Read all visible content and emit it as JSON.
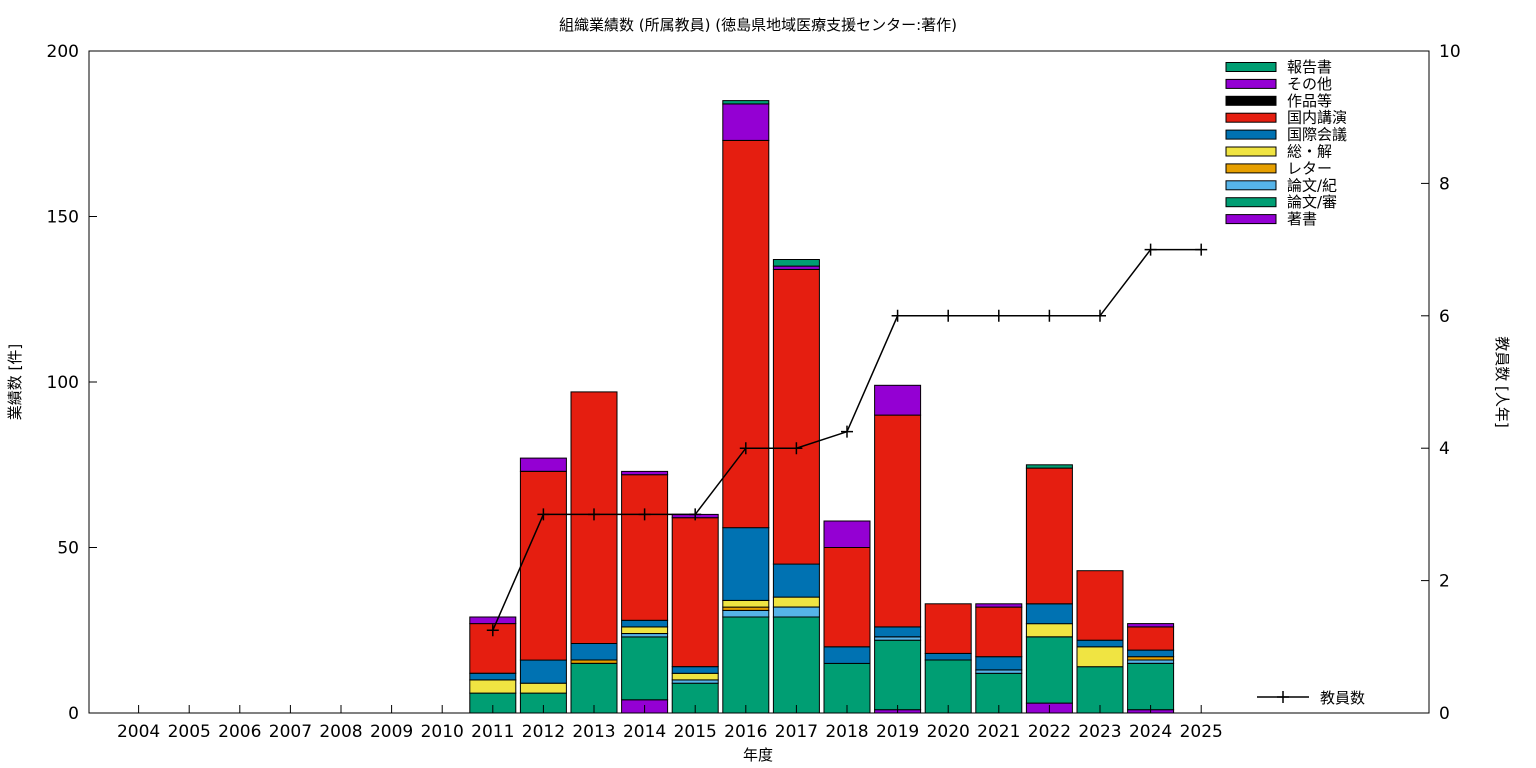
{
  "chart_data": {
    "type": "bar",
    "stacked": true,
    "title": "組織業績数 (所属教員) (徳島県地域医療支援センター:著作)",
    "xlabel": "年度",
    "ylabel": "業績数 [件]",
    "y2label": "教員数 [人年]",
    "ylim": [
      0,
      200
    ],
    "y2lim": [
      0,
      10
    ],
    "yticks": [
      0,
      50,
      100,
      150,
      200
    ],
    "y2ticks": [
      0,
      2,
      4,
      6,
      8,
      10
    ],
    "legend_position": "top-right",
    "categories": [
      "2004",
      "2005",
      "2006",
      "2007",
      "2008",
      "2009",
      "2010",
      "2011",
      "2012",
      "2013",
      "2014",
      "2015",
      "2016",
      "2017",
      "2018",
      "2019",
      "2020",
      "2021",
      "2022",
      "2023",
      "2024",
      "2025"
    ],
    "series": [
      {
        "name": "著書",
        "color": "#9400d3",
        "values": [
          0,
          0,
          0,
          0,
          0,
          0,
          0,
          0,
          0,
          0,
          4,
          0,
          0,
          0,
          0,
          1,
          0,
          0,
          3,
          0,
          1,
          0
        ]
      },
      {
        "name": "論文/審",
        "color": "#009e73",
        "values": [
          0,
          0,
          0,
          0,
          0,
          0,
          0,
          6,
          6,
          15,
          19,
          9,
          29,
          29,
          15,
          21,
          16,
          12,
          20,
          14,
          14,
          0
        ]
      },
      {
        "name": "論文/紀",
        "color": "#56b4e9",
        "values": [
          0,
          0,
          0,
          0,
          0,
          0,
          0,
          0,
          0,
          0,
          1,
          1,
          2,
          3,
          0,
          1,
          0,
          1,
          0,
          0,
          1,
          0
        ]
      },
      {
        "name": "レター",
        "color": "#e69f00",
        "values": [
          0,
          0,
          0,
          0,
          0,
          0,
          0,
          0,
          0,
          1,
          0,
          0,
          1,
          0,
          0,
          0,
          0,
          0,
          0,
          0,
          1,
          0
        ]
      },
      {
        "name": "総・解",
        "color": "#f0e442",
        "values": [
          0,
          0,
          0,
          0,
          0,
          0,
          0,
          4,
          3,
          0,
          2,
          2,
          2,
          3,
          0,
          0,
          0,
          0,
          4,
          6,
          0,
          0
        ]
      },
      {
        "name": "国際会議",
        "color": "#0072b2",
        "values": [
          0,
          0,
          0,
          0,
          0,
          0,
          0,
          2,
          7,
          5,
          2,
          2,
          22,
          10,
          5,
          3,
          2,
          4,
          6,
          2,
          2,
          0
        ]
      },
      {
        "name": "国内講演",
        "color": "#e51e10",
        "values": [
          0,
          0,
          0,
          0,
          0,
          0,
          0,
          15,
          57,
          76,
          44,
          45,
          117,
          89,
          30,
          64,
          15,
          15,
          41,
          21,
          7,
          0
        ]
      },
      {
        "name": "作品等",
        "color": "#000000",
        "values": [
          0,
          0,
          0,
          0,
          0,
          0,
          0,
          0,
          0,
          0,
          0,
          0,
          0,
          0,
          0,
          0,
          0,
          0,
          0,
          0,
          0,
          0
        ]
      },
      {
        "name": "その他",
        "color": "#9400d3",
        "values": [
          0,
          0,
          0,
          0,
          0,
          0,
          0,
          2,
          4,
          0,
          1,
          1,
          11,
          1,
          8,
          9,
          0,
          1,
          0,
          0,
          1,
          0
        ]
      },
      {
        "name": "報告書",
        "color": "#009e73",
        "values": [
          0,
          0,
          0,
          0,
          0,
          0,
          0,
          0,
          0,
          0,
          0,
          0,
          1,
          2,
          0,
          0,
          0,
          0,
          1,
          0,
          0,
          0
        ]
      }
    ],
    "line": {
      "name": "教員数",
      "color": "#000000",
      "axis": "y2",
      "x": [
        "2011",
        "2012",
        "2013",
        "2014",
        "2015",
        "2016",
        "2017",
        "2018",
        "2019",
        "2020",
        "2021",
        "2022",
        "2023",
        "2024",
        "2025"
      ],
      "values": [
        1.25,
        3,
        3,
        3,
        3,
        4,
        4,
        4.25,
        6,
        6,
        6,
        6,
        6,
        7,
        7
      ]
    }
  }
}
